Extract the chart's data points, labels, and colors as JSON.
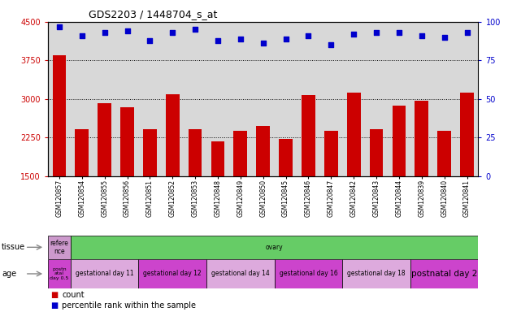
{
  "title": "GDS2203 / 1448704_s_at",
  "samples": [
    "GSM120857",
    "GSM120854",
    "GSM120855",
    "GSM120856",
    "GSM120851",
    "GSM120852",
    "GSM120853",
    "GSM120848",
    "GSM120849",
    "GSM120850",
    "GSM120845",
    "GSM120846",
    "GSM120847",
    "GSM120842",
    "GSM120843",
    "GSM120844",
    "GSM120839",
    "GSM120840",
    "GSM120841"
  ],
  "counts": [
    3850,
    2420,
    2920,
    2840,
    2420,
    3100,
    2420,
    2180,
    2380,
    2480,
    2230,
    3070,
    2390,
    3120,
    2420,
    2870,
    2960,
    2380,
    3120
  ],
  "percentiles": [
    97,
    91,
    93,
    94,
    88,
    93,
    95,
    88,
    89,
    86,
    89,
    91,
    85,
    92,
    93,
    93,
    91,
    90,
    93
  ],
  "ylim_left": [
    1500,
    4500
  ],
  "ylim_right": [
    0,
    100
  ],
  "yticks_left": [
    1500,
    2250,
    3000,
    3750,
    4500
  ],
  "yticks_right": [
    0,
    25,
    50,
    75,
    100
  ],
  "bar_color": "#cc0000",
  "dot_color": "#0000cc",
  "plot_bg_color": "#d8d8d8",
  "tissue_groups": [
    {
      "name": "refere\nnce",
      "count": 1,
      "color": "#cc99cc"
    },
    {
      "name": "ovary",
      "count": 18,
      "color": "#66cc66"
    }
  ],
  "age_groups": [
    {
      "name": "postn\natal\nday 0.5",
      "count": 1,
      "color": "#cc44cc"
    },
    {
      "name": "gestational day 11",
      "count": 3,
      "color": "#ddaadd"
    },
    {
      "name": "gestational day 12",
      "count": 3,
      "color": "#cc44cc"
    },
    {
      "name": "gestational day 14",
      "count": 3,
      "color": "#ddaadd"
    },
    {
      "name": "gestational day 16",
      "count": 3,
      "color": "#cc44cc"
    },
    {
      "name": "gestational day 18",
      "count": 3,
      "color": "#ddaadd"
    },
    {
      "name": "postnatal day 2",
      "count": 3,
      "color": "#cc44cc"
    }
  ],
  "background_color": "#ffffff",
  "tick_color_left": "#cc0000",
  "tick_color_right": "#0000cc",
  "n_samples": 19,
  "tissue_label": "tissue",
  "age_label": "age",
  "legend_items": [
    {
      "color": "#cc0000",
      "marker": "s",
      "label": "count"
    },
    {
      "color": "#0000cc",
      "marker": "s",
      "label": "percentile rank within the sample"
    }
  ]
}
